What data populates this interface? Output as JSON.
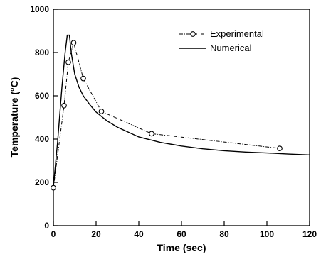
{
  "chart_data": {
    "type": "line",
    "title": "",
    "xlabel": "Time (sec)",
    "ylabel": "Temperature (°C)",
    "xlim": [
      0,
      120
    ],
    "ylim": [
      0,
      1000
    ],
    "xticks": [
      0,
      20,
      40,
      60,
      80,
      100,
      120
    ],
    "yticks": [
      0,
      200,
      400,
      600,
      800,
      1000
    ],
    "grid": false,
    "legend_position": "top-right",
    "series": [
      {
        "name": "Experimental",
        "style": "dash-dot line with open circle markers",
        "color": "#000000",
        "x": [
          0,
          5,
          7,
          9.5,
          14,
          22.5,
          46,
          106
        ],
        "y": [
          175,
          555,
          755,
          845,
          680,
          528,
          425,
          357
        ]
      },
      {
        "name": "Numerical",
        "style": "solid line",
        "color": "#000000",
        "x": [
          0,
          2,
          4,
          5.5,
          6.5,
          7.5,
          8.5,
          10,
          12,
          14,
          17,
          20,
          25,
          30,
          40,
          50,
          60,
          70,
          80,
          90,
          100,
          110,
          120
        ],
        "y": [
          180,
          390,
          640,
          800,
          880,
          880,
          790,
          700,
          640,
          600,
          560,
          525,
          485,
          455,
          410,
          385,
          368,
          355,
          346,
          340,
          336,
          331,
          327
        ]
      }
    ]
  }
}
